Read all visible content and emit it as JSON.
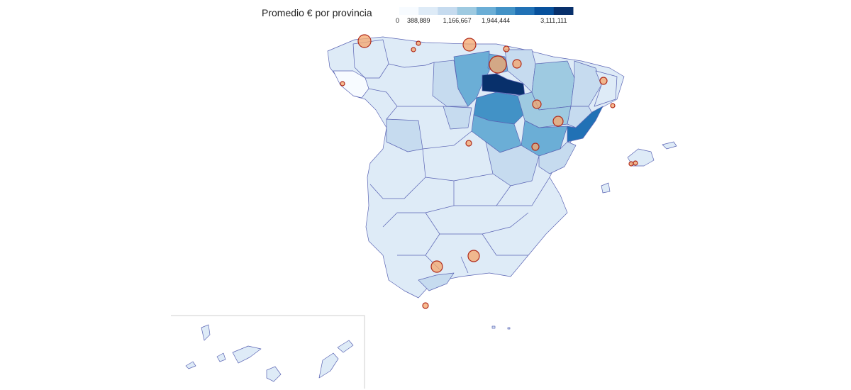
{
  "title": "Promedio € por provincia",
  "legend": {
    "colors": [
      "#f7fbff",
      "#deebf7",
      "#c6dbef",
      "#9ecae1",
      "#6baed6",
      "#4292c6",
      "#2171b5",
      "#08519c",
      "#08306b"
    ],
    "ticks": [
      "0",
      "388,889",
      "1,166,667",
      "1,944,444",
      "3,111,111"
    ],
    "tick_values": [
      0,
      388889,
      1166667,
      1944444,
      3111111
    ],
    "max": 3500000
  },
  "colors": {
    "border": "#5a64b4",
    "bubble_fill": "#f5a56b",
    "bubble_stroke": "#b02a1a"
  },
  "chart_data": {
    "type": "choropleth-with-bubbles",
    "color_scale": "Blues",
    "region_levels": [
      {
        "region": "La Rioja",
        "level": 8
      },
      {
        "region": "Castellón",
        "level": 6
      },
      {
        "region": "Soria",
        "level": 5
      },
      {
        "region": "Burgos",
        "level": 4
      },
      {
        "region": "Guadalajara",
        "level": 4
      },
      {
        "region": "Teruel",
        "level": 4
      },
      {
        "region": "Álava",
        "level": 4
      },
      {
        "region": "Huesca",
        "level": 3
      },
      {
        "region": "Zaragoza",
        "level": 3
      },
      {
        "region": "Navarra",
        "level": 2
      },
      {
        "region": "Lleida",
        "level": 2
      },
      {
        "region": "Cuenca",
        "level": 2
      },
      {
        "region": "Palencia",
        "level": 2
      },
      {
        "region": "Salamanca",
        "level": 2
      },
      {
        "region": "Segovia",
        "level": 2
      },
      {
        "region": "Tarragona",
        "level": 2
      },
      {
        "region": "Valencia",
        "level": 2
      },
      {
        "region": "Málaga",
        "level": 2
      },
      {
        "region": "Lugo",
        "level": 1
      },
      {
        "region": "Pontevedra",
        "level": 0
      }
    ]
  }
}
